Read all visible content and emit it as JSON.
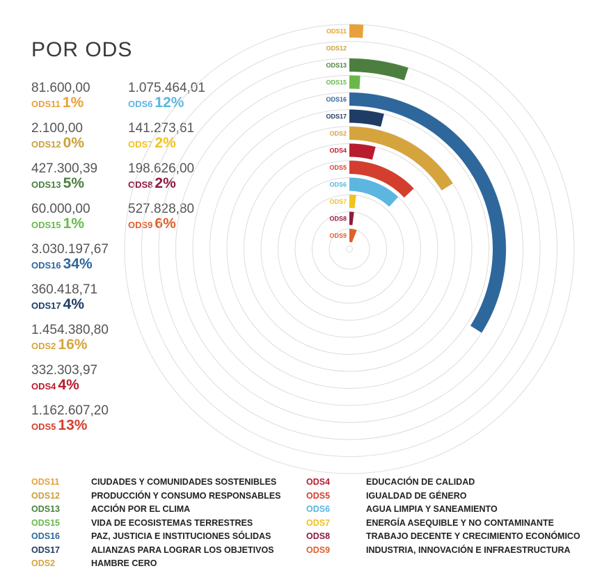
{
  "title": "POR ODS",
  "stats": [
    {
      "code": "ODS11",
      "amount": "81.600,00",
      "pct": "1%",
      "color": "#e8a13a"
    },
    {
      "code": "ODS12",
      "amount": "2.100,00",
      "pct": "0%",
      "color": "#c9a13c"
    },
    {
      "code": "ODS13",
      "amount": "427.300,39",
      "pct": "5%",
      "color": "#4c7f3f"
    },
    {
      "code": "ODS15",
      "amount": "60.000,00",
      "pct": "1%",
      "color": "#6ab84b"
    },
    {
      "code": "ODS16",
      "amount": "3.030.197,67",
      "pct": "34%",
      "color": "#2e679c"
    },
    {
      "code": "ODS17",
      "amount": "360.418,71",
      "pct": "4%",
      "color": "#1f3c64"
    },
    {
      "code": "ODS2",
      "amount": "1.454.380,80",
      "pct": "16%",
      "color": "#d6a43d"
    },
    {
      "code": "ODS4",
      "amount": "332.303,97",
      "pct": "4%",
      "color": "#b81c2d"
    },
    {
      "code": "ODS5",
      "amount": "1.162.607,20",
      "pct": "13%",
      "color": "#d43e2e"
    },
    {
      "code": "ODS6",
      "amount": "1.075.464,01",
      "pct": "12%",
      "color": "#5bb6e0"
    },
    {
      "code": "ODS7",
      "amount": "141.273,61",
      "pct": "2%",
      "color": "#f0c221"
    },
    {
      "code": "ODS8",
      "amount": "198.626,00",
      "pct": "2%",
      "color": "#8c1b3e"
    },
    {
      "code": "ODS9",
      "amount": "527.828,80",
      "pct": "6%",
      "color": "#e05f2c"
    }
  ],
  "chart_data": {
    "type": "radial-bar",
    "categories": [
      "ODS11",
      "ODS12",
      "ODS13",
      "ODS15",
      "ODS16",
      "ODS17",
      "ODS2",
      "ODS4",
      "ODS5",
      "ODS6",
      "ODS7",
      "ODS8",
      "ODS9"
    ],
    "values": [
      81600.0,
      2100.0,
      427300.39,
      60000.0,
      3030197.67,
      360418.71,
      1454380.8,
      332303.97,
      1162607.2,
      1075464.01,
      141273.61,
      198626.0,
      527828.8
    ],
    "percents": [
      1,
      0,
      5,
      1,
      34,
      4,
      16,
      4,
      13,
      12,
      2,
      2,
      6
    ],
    "colors": [
      "#e8a13a",
      "#c9a13c",
      "#4c7f3f",
      "#6ab84b",
      "#2e679c",
      "#1f3c64",
      "#d6a43d",
      "#b81c2d",
      "#d43e2e",
      "#5bb6e0",
      "#f0c221",
      "#8c1b3e",
      "#e05f2c"
    ],
    "max_percent": 100,
    "grid": true
  },
  "legend": [
    {
      "code": "ODS11",
      "name": "CIUDADES Y COMUNIDADES SOSTENIBLES",
      "color": "#e8a13a"
    },
    {
      "code": "ODS12",
      "name": "PRODUCCIÓN Y CONSUMO RESPONSABLES",
      "color": "#c9a13c"
    },
    {
      "code": "ODS13",
      "name": "ACCIÓN POR EL CLIMA",
      "color": "#4c7f3f"
    },
    {
      "code": "ODS15",
      "name": "VIDA DE ECOSISTEMAS TERRESTRES",
      "color": "#6ab84b"
    },
    {
      "code": "ODS16",
      "name": "PAZ, JUSTICIA E INSTITUCIONES SÓLIDAS",
      "color": "#2e679c"
    },
    {
      "code": "ODS17",
      "name": "ALIANZAS PARA LOGRAR LOS OBJETIVOS",
      "color": "#1f3c64"
    },
    {
      "code": "ODS2",
      "name": "HAMBRE CERO",
      "color": "#d6a43d"
    },
    {
      "code": "ODS4",
      "name": "EDUCACIÓN DE CALIDAD",
      "color": "#b81c2d"
    },
    {
      "code": "ODS5",
      "name": "IGUALDAD DE GÉNERO",
      "color": "#d43e2e"
    },
    {
      "code": "ODS6",
      "name": "AGUA LIMPIA Y SANEAMIENTO",
      "color": "#5bb6e0"
    },
    {
      "code": "ODS7",
      "name": "ENERGÍA ASEQUIBLE Y NO CONTAMINANTE",
      "color": "#f0c221"
    },
    {
      "code": "ODS8",
      "name": "TRABAJO DECENTE Y CRECIMIENTO ECONÓMICO",
      "color": "#8c1b3e"
    },
    {
      "code": "ODS9",
      "name": "INDUSTRIA, INNOVACIÓN E INFRAESTRUCTURA",
      "color": "#e05f2c"
    }
  ]
}
